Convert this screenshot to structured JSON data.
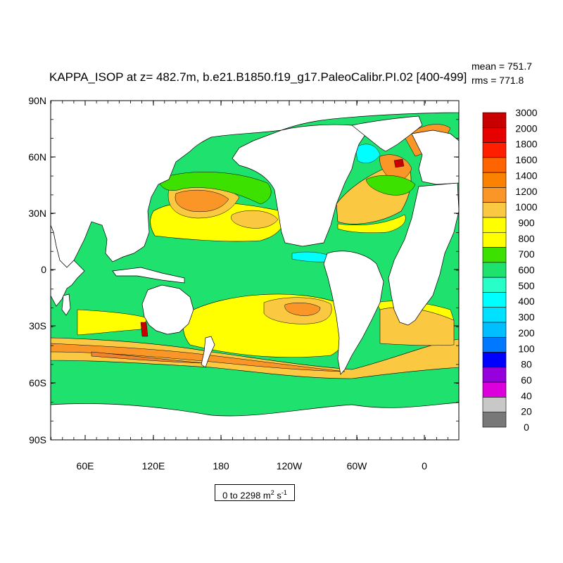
{
  "title": "KAPPA_ISOP at z= 482.7m, b.e21.B1850.f19_g17.PaleoCalibr.PI.02 [400-499]",
  "stats": {
    "mean": "mean = 751.7",
    "rms": "rms = 771.8"
  },
  "units": {
    "range": "0 to 2298 m",
    "exp1": "2",
    "mid": " s",
    "exp2": "-1"
  },
  "lat_labels": [
    "90N",
    "60N",
    "30N",
    "0",
    "30S",
    "60S",
    "90S"
  ],
  "lon_labels": [
    "60E",
    "120E",
    "180",
    "120W",
    "60W",
    "0"
  ],
  "colorbar": {
    "levels": [
      "3000",
      "2000",
      "1800",
      "1600",
      "1400",
      "1200",
      "1000",
      "900",
      "800",
      "700",
      "600",
      "500",
      "400",
      "300",
      "200",
      "100",
      "80",
      "60",
      "40",
      "20",
      "0"
    ],
    "colors": [
      "#c80000",
      "#e60000",
      "#ff1e00",
      "#ff6400",
      "#fa8200",
      "#fa9628",
      "#fac841",
      "#ffff00",
      "#ffff00",
      "#3ce100",
      "#1ee16e",
      "#28ffc8",
      "#00ffff",
      "#00e1ff",
      "#00beff",
      "#0078ff",
      "#0000ff",
      "#9600dc",
      "#dc00dc",
      "#c8c8c8",
      "#787878"
    ]
  },
  "colors": {
    "land": "#ffffff",
    "ocean_base": "#1ee16e",
    "yellow": "#ffff00",
    "gold": "#fac841",
    "orange": "#fa9628",
    "dark_orange": "#f08232",
    "green": "#3ce100",
    "cyan": "#00ffff",
    "red": "#c80000"
  }
}
